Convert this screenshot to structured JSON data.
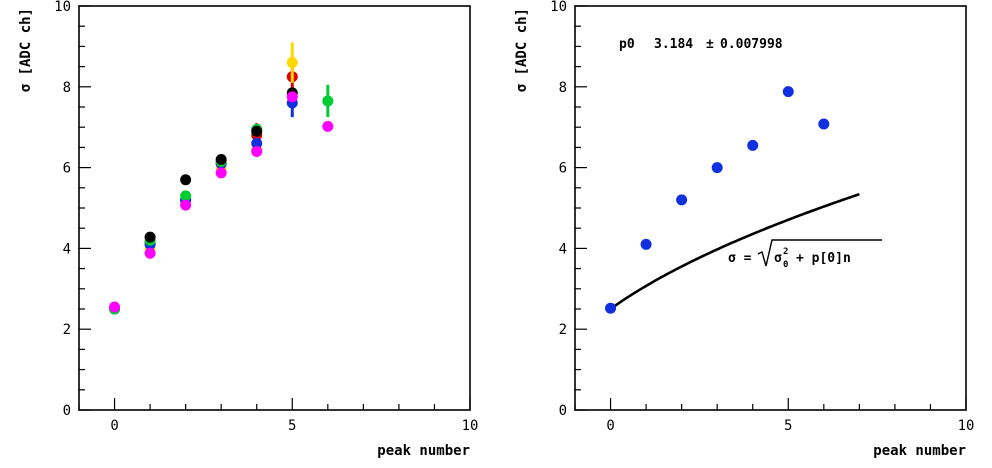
{
  "chart_data": [
    {
      "type": "scatter",
      "title": "",
      "xlabel": "peak number",
      "ylabel": "σ [ADC ch]",
      "xlim": [
        -1,
        10
      ],
      "ylim": [
        0,
        10
      ],
      "xticks": [
        0,
        5,
        10
      ],
      "yticks": [
        0,
        2,
        4,
        6,
        8,
        10
      ],
      "grid": false,
      "series": [
        {
          "color": "#e00000",
          "points": [
            [
              0,
              2.5,
              0.0
            ],
            [
              1,
              4.15,
              0.0
            ],
            [
              2,
              5.2,
              0.0
            ],
            [
              3,
              6.1,
              0.0
            ],
            [
              4,
              6.8,
              0.3
            ],
            [
              5,
              8.25,
              0.5
            ]
          ]
        },
        {
          "color": "#ffd700",
          "points": [
            [
              0,
              2.5,
              0.0
            ],
            [
              1,
              4.0,
              0.0
            ],
            [
              2,
              5.1,
              0.0
            ],
            [
              3,
              6.0,
              0.0
            ],
            [
              4,
              6.45,
              0.0
            ],
            [
              5,
              8.6,
              0.5
            ]
          ]
        },
        {
          "color": "#1030e0",
          "points": [
            [
              0,
              2.5,
              0.0
            ],
            [
              1,
              4.1,
              0.0
            ],
            [
              2,
              5.2,
              0.0
            ],
            [
              3,
              6.1,
              0.0
            ],
            [
              4,
              6.6,
              0.0
            ],
            [
              5,
              7.6,
              0.35
            ]
          ]
        },
        {
          "color": "#00cc33",
          "points": [
            [
              0,
              2.5,
              0.0
            ],
            [
              1,
              4.2,
              0.0
            ],
            [
              2,
              5.3,
              0.0
            ],
            [
              3,
              6.15,
              0.0
            ],
            [
              4,
              6.95,
              0.0
            ],
            [
              6,
              7.65,
              0.4
            ]
          ]
        },
        {
          "color": "#000000",
          "points": [
            [
              1,
              4.28,
              0.0
            ],
            [
              2,
              5.7,
              0.0
            ],
            [
              3,
              6.2,
              0.0
            ],
            [
              4,
              6.9,
              0.0
            ],
            [
              5,
              7.85,
              0.0
            ]
          ]
        },
        {
          "color": "#ff00ff",
          "points": [
            [
              0,
              2.55,
              0.0
            ],
            [
              1,
              3.88,
              0.0
            ],
            [
              2,
              5.07,
              0.0
            ],
            [
              3,
              5.87,
              0.0
            ],
            [
              4,
              6.4,
              0.0
            ],
            [
              5,
              7.75,
              0.0
            ],
            [
              6,
              7.02,
              0.0
            ]
          ]
        }
      ]
    },
    {
      "type": "scatter",
      "title": "",
      "xlabel": "peak number",
      "ylabel": "σ [ADC ch]",
      "xlim": [
        -1,
        10
      ],
      "ylim": [
        0,
        10
      ],
      "xticks": [
        0,
        5,
        10
      ],
      "yticks": [
        0,
        2,
        4,
        6,
        8,
        10
      ],
      "grid": false,
      "series": [
        {
          "color": "#1030e0",
          "points": [
            [
              0,
              2.52
            ],
            [
              1,
              4.1
            ],
            [
              2,
              5.2
            ],
            [
              3,
              6.0
            ],
            [
              4,
              6.55
            ],
            [
              5,
              7.88
            ],
            [
              6,
              7.08
            ]
          ]
        }
      ],
      "fit": {
        "x_range": [
          0,
          7
        ],
        "sigma0": 2.5,
        "p0": 3.184,
        "color": "#000000"
      },
      "annotations": {
        "param_name": "p0",
        "param_value": "3.184",
        "param_pm": "±",
        "param_error": "0.007998",
        "formula_lhs": "σ =",
        "formula_rhs": "+ p[0]n"
      }
    }
  ]
}
